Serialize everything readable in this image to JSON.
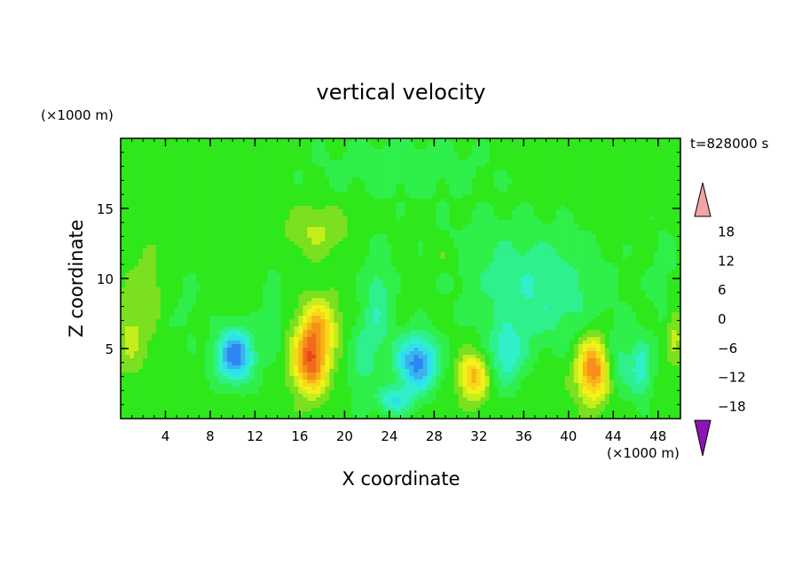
{
  "chart_data": {
    "type": "heatmap",
    "title": "vertical velocity",
    "xlabel": "X coordinate",
    "ylabel": "Z coordinate",
    "x_unit": "(×1000 m)",
    "y_unit": "(×1000 m)",
    "time_label": "t=828000 s",
    "xlim": [
      0,
      50
    ],
    "ylim": [
      0,
      20
    ],
    "x_ticks": [
      "4",
      "8",
      "12",
      "16",
      "20",
      "24",
      "28",
      "32",
      "36",
      "40",
      "44",
      "48"
    ],
    "y_ticks": [
      "5",
      "10",
      "15"
    ],
    "x_tick_values": [
      4,
      8,
      12,
      16,
      20,
      24,
      28,
      32,
      36,
      40,
      44,
      48
    ],
    "y_tick_values": [
      5,
      10,
      15
    ],
    "colorbar": {
      "min": -21,
      "max": 21,
      "step": 2,
      "extend": "both",
      "labels": [
        "18",
        "12",
        "6",
        "0",
        "−6",
        "−12",
        "−18"
      ],
      "label_values": [
        18,
        12,
        6,
        0,
        -6,
        -12,
        -18
      ],
      "colors": [
        "#1a0b8c",
        "#2a10b0",
        "#1f2fd6",
        "#1f55ef",
        "#2d86f2",
        "#3ab2ee",
        "#2ee0ee",
        "#30f0c8",
        "#2ef08c",
        "#2fef4a",
        "#2ee81b",
        "#7ae020",
        "#c6ee1a",
        "#f2f21a",
        "#f7d81a",
        "#f9b217",
        "#f6901a",
        "#f06c1a",
        "#e9461c",
        "#e5211d",
        "#cf1316"
      ],
      "under_color": "#8e14b5",
      "over_color": "#f4a4a4"
    },
    "features": [
      {
        "x": 0.8,
        "z": 5.8,
        "w": 3.2,
        "sx": 1.6,
        "sz": 2.6
      },
      {
        "x": 4.0,
        "z": 5.5,
        "w": -1.0,
        "sx": 0.8,
        "sz": 2.0
      },
      {
        "x": 2.3,
        "z": 9.0,
        "w": 2.0,
        "sx": 1.6,
        "sz": 3.0
      },
      {
        "x": 10.2,
        "z": 4.5,
        "w": -12.5,
        "sx": 1.7,
        "sz": 1.9
      },
      {
        "x": 6.0,
        "z": 8.0,
        "w": -1.5,
        "sx": 1.2,
        "sz": 3.0
      },
      {
        "x": 13.5,
        "z": 7.5,
        "w": -3.0,
        "sx": 0.8,
        "sz": 3.0
      },
      {
        "x": 17.0,
        "z": 4.2,
        "w": 15.0,
        "sx": 1.5,
        "sz": 2.3
      },
      {
        "x": 17.8,
        "z": 6.8,
        "w": 7.0,
        "sx": 1.6,
        "sz": 1.8
      },
      {
        "x": 17.5,
        "z": 13.5,
        "w": 3.5,
        "sx": 2.5,
        "sz": 1.8
      },
      {
        "x": 21.5,
        "z": 4.0,
        "w": -3.5,
        "sx": 1.2,
        "sz": 3.0
      },
      {
        "x": 26.5,
        "z": 4.0,
        "w": -12.0,
        "sx": 1.8,
        "sz": 2.0
      },
      {
        "x": 23.0,
        "z": 8.0,
        "w": -4.5,
        "sx": 1.3,
        "sz": 4.0
      },
      {
        "x": 24.5,
        "z": 1.3,
        "w": -7.0,
        "sx": 1.5,
        "sz": 1.0
      },
      {
        "x": 31.5,
        "z": 3.0,
        "w": 10.0,
        "sx": 1.3,
        "sz": 1.6
      },
      {
        "x": 34.5,
        "z": 4.5,
        "w": -6.0,
        "sx": 1.6,
        "sz": 2.2
      },
      {
        "x": 37.5,
        "z": 8.5,
        "w": -4.5,
        "sx": 5.5,
        "sz": 3.3
      },
      {
        "x": 35.0,
        "z": 12.0,
        "w": -2.0,
        "sx": 7.5,
        "sz": 3.0
      },
      {
        "x": 29.0,
        "z": 11.5,
        "w": 1.8,
        "sx": 1.5,
        "sz": 1.0
      },
      {
        "x": 42.2,
        "z": 3.5,
        "w": 13.0,
        "sx": 1.4,
        "sz": 2.2
      },
      {
        "x": 44.5,
        "z": 4.0,
        "w": -4.0,
        "sx": 1.2,
        "sz": 2.2
      },
      {
        "x": 46.5,
        "z": 3.5,
        "w": -6.0,
        "sx": 1.0,
        "sz": 2.2
      },
      {
        "x": 48.5,
        "z": 10.0,
        "w": -1.5,
        "sx": 1.5,
        "sz": 5.0
      },
      {
        "x": 49.5,
        "z": 6.0,
        "w": 4.0,
        "sx": 0.8,
        "sz": 2.0
      },
      {
        "x": 25.0,
        "z": 18.0,
        "w": -2.0,
        "sx": 9.0,
        "sz": 2.5
      }
    ]
  }
}
